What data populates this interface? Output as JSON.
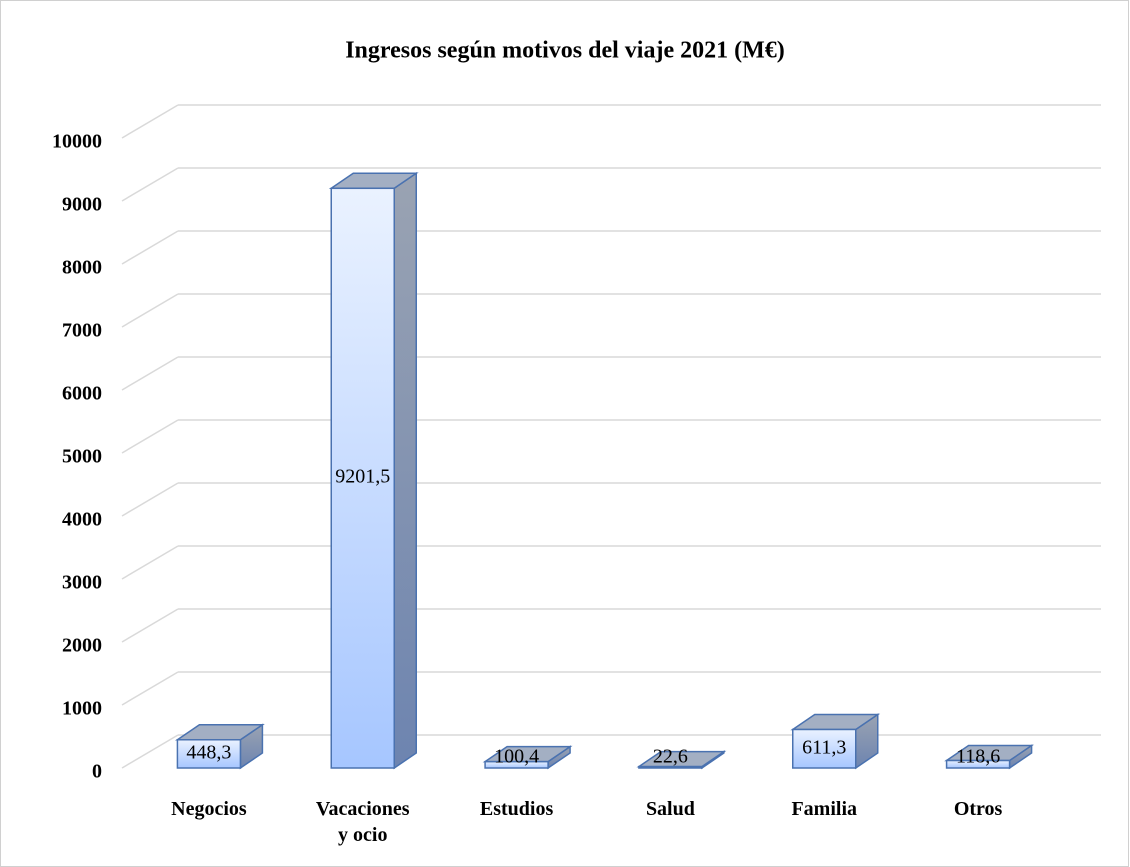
{
  "chart_data": {
    "type": "bar3d",
    "title": "Ingresos según motivos del viaje 2021 (M€)",
    "categories": [
      "Negocios",
      "Vacaciones y ocio",
      "Estudios",
      "Salud",
      "Familia",
      "Otros"
    ],
    "values": [
      448.3,
      9201.5,
      100.4,
      22.6,
      611.3,
      118.6
    ],
    "value_labels": [
      "448,3",
      "9201,5",
      "100,4",
      "22,6",
      "611,3",
      "118,6"
    ],
    "color": "#b8d2ff",
    "ylim": [
      0,
      10000
    ],
    "yticks": [
      0,
      1000,
      2000,
      3000,
      4000,
      5000,
      6000,
      7000,
      8000,
      9000,
      10000
    ],
    "grid": true
  }
}
